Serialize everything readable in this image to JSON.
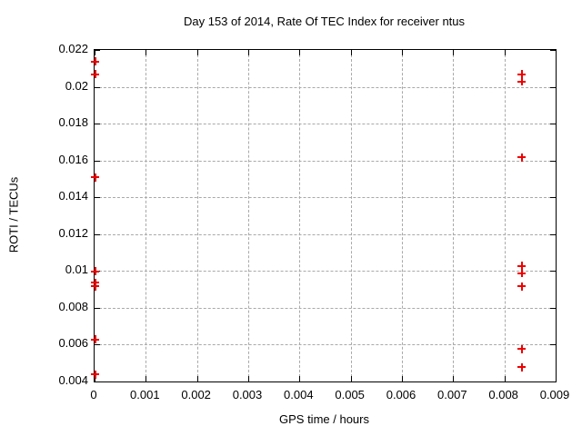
{
  "chart_data": {
    "type": "scatter",
    "title": "Day 153 of 2014, Rate Of TEC Index for receiver ntus",
    "xlabel": "GPS time / hours",
    "ylabel": "ROTI / TECUs",
    "xlim": [
      0,
      0.009
    ],
    "ylim": [
      0.004,
      0.022
    ],
    "xticks": [
      0,
      0.001,
      0.002,
      0.003,
      0.004,
      0.005,
      0.006,
      0.007,
      0.008,
      0.009
    ],
    "xtick_labels": [
      "0",
      "0.001",
      "0.002",
      "0.003",
      "0.004",
      "0.005",
      "0.006",
      "0.007",
      "0.008",
      "0.009"
    ],
    "yticks": [
      0.004,
      0.006,
      0.008,
      0.01,
      0.012,
      0.014,
      0.016,
      0.018,
      0.02,
      0.022
    ],
    "ytick_labels": [
      "0.004",
      "0.006",
      "0.008",
      "0.01",
      "0.012",
      "0.014",
      "0.016",
      "0.018",
      "0.02",
      "0.022"
    ],
    "grid": true,
    "legend": "none",
    "marker": "plus",
    "colors": {
      "marker": "#ee0000",
      "grid": "#a9a9a9",
      "frame": "#000000",
      "background": "#ffffff"
    },
    "series": [
      {
        "name": "ROTI",
        "points": [
          [
            0,
            0.0214
          ],
          [
            0,
            0.0207
          ],
          [
            0,
            0.0151
          ],
          [
            0,
            0.01
          ],
          [
            0,
            0.0094
          ],
          [
            0,
            0.0092
          ],
          [
            0,
            0.0063
          ],
          [
            0,
            0.0044
          ],
          [
            0.00833,
            0.0207
          ],
          [
            0.00833,
            0.0203
          ],
          [
            0.00833,
            0.0162
          ],
          [
            0.00833,
            0.0103
          ],
          [
            0.00833,
            0.0099
          ],
          [
            0.00833,
            0.0092
          ],
          [
            0.00833,
            0.0058
          ],
          [
            0.00833,
            0.0048
          ]
        ]
      }
    ]
  }
}
